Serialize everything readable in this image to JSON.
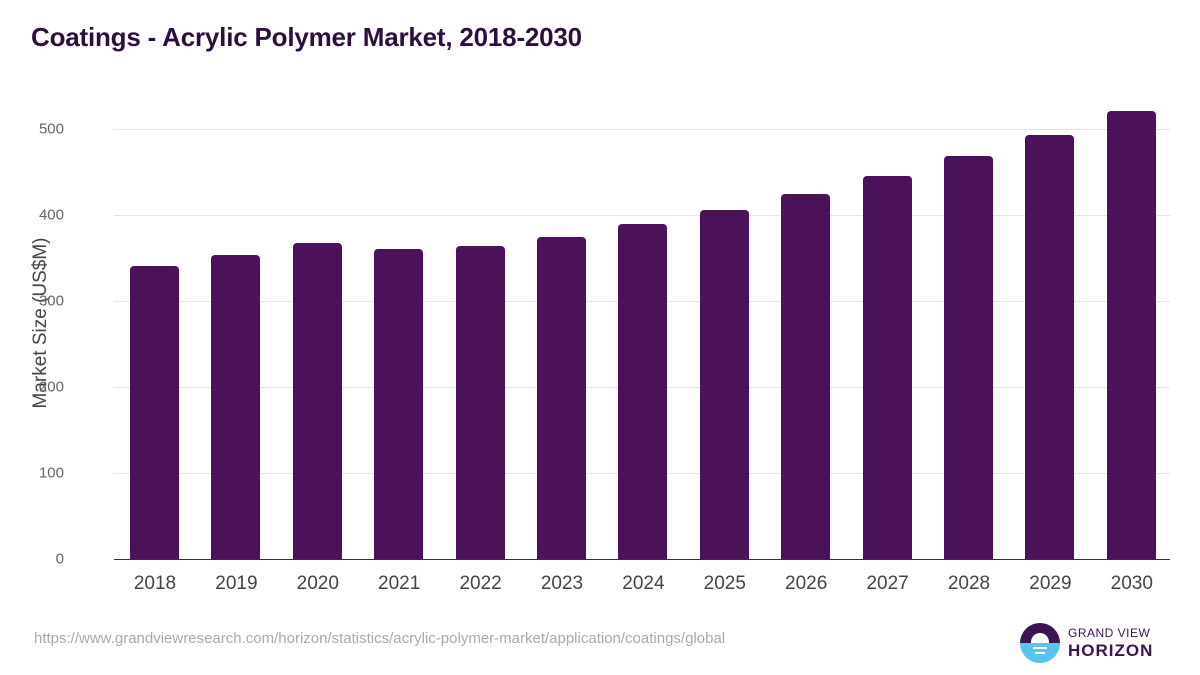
{
  "title": "Coatings - Acrylic Polymer Market, 2018-2030",
  "footer": {
    "url": "https://www.grandviewresearch.com/horizon/statistics/acrylic-polymer-market/application/coatings/global",
    "logo_line1": "GRAND VIEW",
    "logo_line2": "HORIZON"
  },
  "colors": {
    "bar": "#4b1259",
    "title": "#2d0f3f",
    "logo_dark": "#3b1450",
    "logo_light": "#5bc4ec"
  },
  "chart_data": {
    "type": "bar",
    "title": "Coatings - Acrylic Polymer Market, 2018-2030",
    "xlabel": "",
    "ylabel": "Market Size (US$M)",
    "ylim": [
      0,
      500
    ],
    "yticks": [
      "0",
      "100",
      "200",
      "300",
      "400",
      "500"
    ],
    "grid": true,
    "legend": "none",
    "categories": [
      "2018",
      "2019",
      "2020",
      "2021",
      "2022",
      "2023",
      "2024",
      "2025",
      "2026",
      "2027",
      "2028",
      "2029",
      "2030"
    ],
    "values": [
      340.7,
      353.2,
      367.4,
      360.4,
      363.9,
      374.4,
      389.5,
      406.1,
      424.5,
      445.5,
      468.8,
      493.2,
      520.9
    ]
  }
}
